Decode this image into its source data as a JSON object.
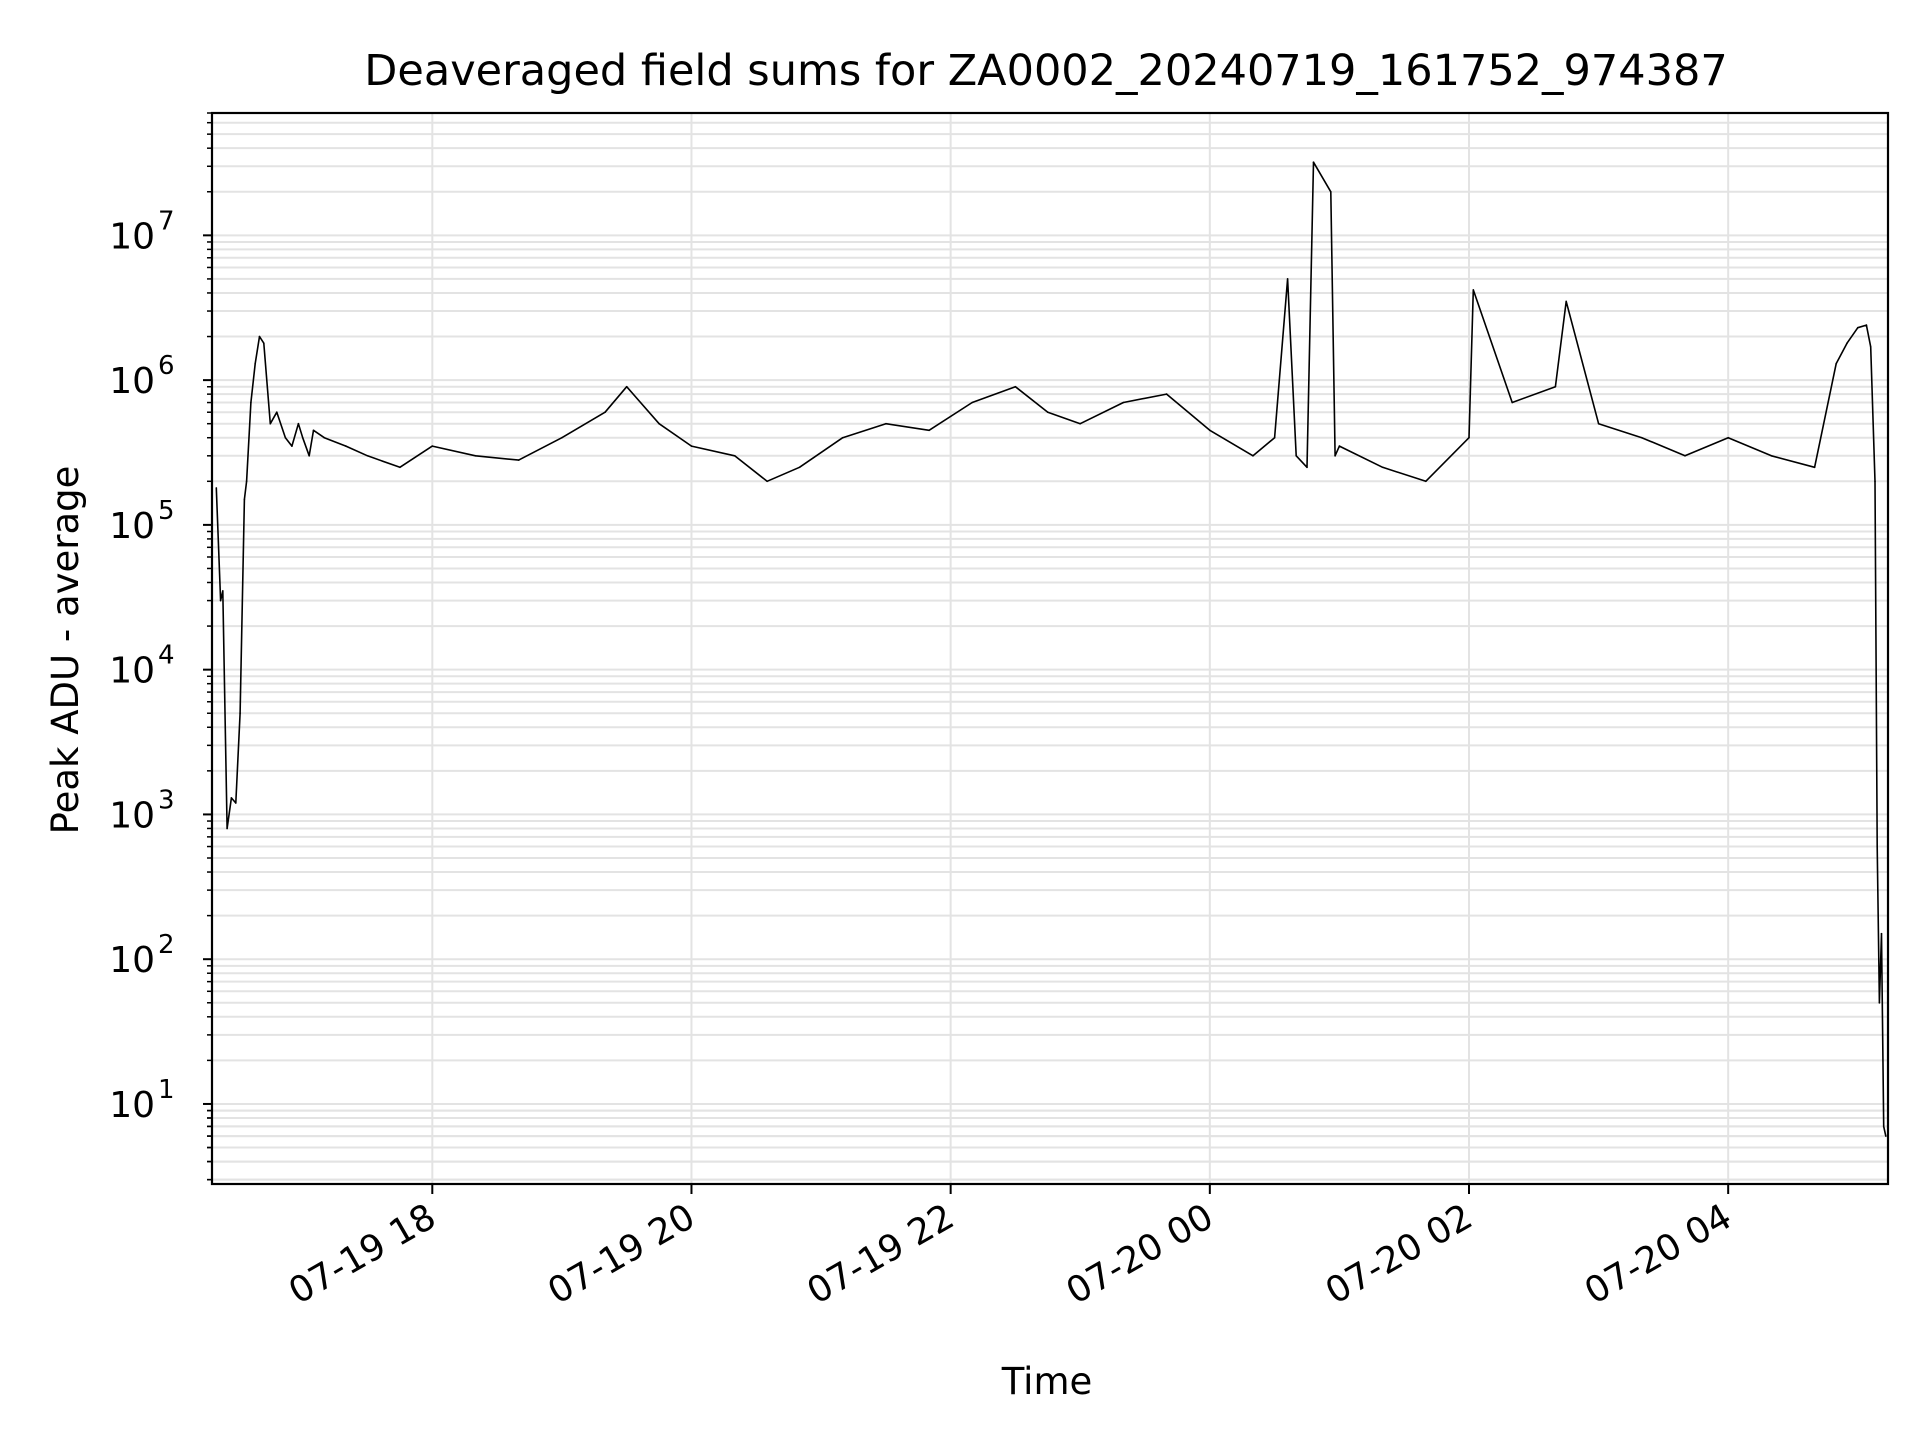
{
  "chart_data": {
    "type": "line",
    "title": "Deaveraged field sums for ZA0002_20240719_161752_974387",
    "xlabel": "Time",
    "ylabel": "Peak ADU - average",
    "yscale": "log",
    "ylim": [
      2.8,
      70000000
    ],
    "xlim": [
      "2024-07-19 16:18",
      "2024-07-20 05:14"
    ],
    "grid": true,
    "line_color": "#000000",
    "grid_color": "#e3e3e3",
    "x_ticks": [
      {
        "t": "2024-07-19 18:00",
        "label": "07-19 18"
      },
      {
        "t": "2024-07-19 20:00",
        "label": "07-19 20"
      },
      {
        "t": "2024-07-19 22:00",
        "label": "07-19 22"
      },
      {
        "t": "2024-07-20 00:00",
        "label": "07-20 00"
      },
      {
        "t": "2024-07-20 02:00",
        "label": "07-20 02"
      },
      {
        "t": "2024-07-20 04:00",
        "label": "07-20 04"
      }
    ],
    "y_ticks": [
      {
        "v": 10,
        "base": "10",
        "exp": "1"
      },
      {
        "v": 100,
        "base": "10",
        "exp": "2"
      },
      {
        "v": 1000,
        "base": "10",
        "exp": "3"
      },
      {
        "v": 10000,
        "base": "10",
        "exp": "4"
      },
      {
        "v": 100000,
        "base": "10",
        "exp": "5"
      },
      {
        "v": 1000000,
        "base": "10",
        "exp": "6"
      },
      {
        "v": 10000000,
        "base": "10",
        "exp": "7"
      }
    ],
    "series": [
      {
        "x": [
          "2024-07-19 16:20",
          "2024-07-19 16:22",
          "2024-07-19 16:23",
          "2024-07-19 16:25",
          "2024-07-19 16:27",
          "2024-07-19 16:29",
          "2024-07-19 16:31",
          "2024-07-19 16:33",
          "2024-07-19 16:34",
          "2024-07-19 16:36",
          "2024-07-19 16:38",
          "2024-07-19 16:40",
          "2024-07-19 16:42",
          "2024-07-19 16:45",
          "2024-07-19 16:48",
          "2024-07-19 16:52",
          "2024-07-19 16:55",
          "2024-07-19 16:58",
          "2024-07-19 17:00",
          "2024-07-19 17:03",
          "2024-07-19 17:05",
          "2024-07-19 17:10",
          "2024-07-19 17:20",
          "2024-07-19 17:30",
          "2024-07-19 17:45",
          "2024-07-19 18:00",
          "2024-07-19 18:20",
          "2024-07-19 18:40",
          "2024-07-19 19:00",
          "2024-07-19 19:20",
          "2024-07-19 19:30",
          "2024-07-19 19:45",
          "2024-07-19 20:00",
          "2024-07-19 20:20",
          "2024-07-19 20:35",
          "2024-07-19 20:50",
          "2024-07-19 21:10",
          "2024-07-19 21:30",
          "2024-07-19 21:50",
          "2024-07-19 22:10",
          "2024-07-19 22:30",
          "2024-07-19 22:45",
          "2024-07-19 23:00",
          "2024-07-19 23:20",
          "2024-07-19 23:40",
          "2024-07-20 00:00",
          "2024-07-20 00:20",
          "2024-07-20 00:30",
          "2024-07-20 00:36",
          "2024-07-20 00:40",
          "2024-07-20 00:45",
          "2024-07-20 00:48",
          "2024-07-20 00:56",
          "2024-07-20 00:58",
          "2024-07-20 01:00",
          "2024-07-20 01:20",
          "2024-07-20 01:40",
          "2024-07-20 02:00",
          "2024-07-20 02:02",
          "2024-07-20 02:20",
          "2024-07-20 02:40",
          "2024-07-20 02:45",
          "2024-07-20 03:00",
          "2024-07-20 03:20",
          "2024-07-20 03:40",
          "2024-07-20 04:00",
          "2024-07-20 04:20",
          "2024-07-20 04:40",
          "2024-07-20 04:50",
          "2024-07-20 04:55",
          "2024-07-20 05:00",
          "2024-07-20 05:04",
          "2024-07-20 05:06",
          "2024-07-20 05:08",
          "2024-07-20 05:09",
          "2024-07-20 05:10",
          "2024-07-20 05:11",
          "2024-07-20 05:12",
          "2024-07-20 05:13"
        ],
        "y": [
          180000,
          30000,
          35000,
          800,
          1300,
          1200,
          5000,
          150000,
          200000,
          700000,
          1300000,
          2000000,
          1800000,
          500000,
          600000,
          400000,
          350000,
          500000,
          400000,
          300000,
          450000,
          400000,
          350000,
          300000,
          250000,
          350000,
          300000,
          280000,
          400000,
          600000,
          900000,
          500000,
          350000,
          300000,
          200000,
          250000,
          400000,
          500000,
          450000,
          700000,
          900000,
          600000,
          500000,
          700000,
          800000,
          450000,
          300000,
          400000,
          5000000,
          300000,
          250000,
          32000000,
          20000000,
          300000,
          350000,
          250000,
          200000,
          400000,
          4200000,
          700000,
          900000,
          3500000,
          500000,
          400000,
          300000,
          400000,
          300000,
          250000,
          1300000,
          1800000,
          2300000,
          2400000,
          1700000,
          200000,
          600,
          50,
          150,
          7,
          6
        ]
      }
    ]
  }
}
